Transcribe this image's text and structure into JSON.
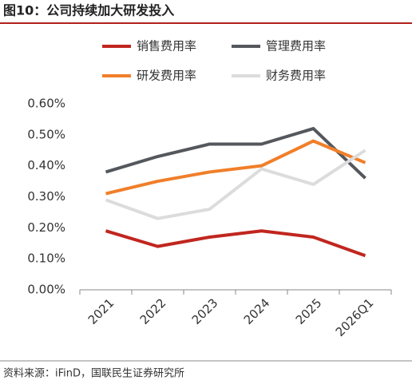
{
  "header": {
    "title": "图10：公司持续加大研发投入"
  },
  "chart_data": {
    "type": "line",
    "categories": [
      "2021",
      "2022",
      "2023",
      "2024",
      "2025",
      "2026Q1"
    ],
    "series": [
      {
        "name": "销售费用率",
        "color": "#c0261f",
        "values": [
          0.19,
          0.14,
          0.17,
          0.19,
          0.17,
          0.11
        ]
      },
      {
        "name": "管理费用率",
        "color": "#54585c",
        "values": [
          0.38,
          0.43,
          0.47,
          0.47,
          0.52,
          0.36
        ]
      },
      {
        "name": "研发费用率",
        "color": "#f07f2a",
        "values": [
          0.31,
          0.35,
          0.38,
          0.4,
          0.48,
          0.41
        ]
      },
      {
        "name": "财务费用率",
        "color": "#dcdcdc",
        "values": [
          0.29,
          0.23,
          0.26,
          0.39,
          0.34,
          0.45
        ]
      }
    ],
    "ylim": [
      0,
      0.6
    ],
    "yticks": [
      {
        "value": 0,
        "label": "0.00%"
      },
      {
        "value": 0.1,
        "label": "0.10%"
      },
      {
        "value": 0.2,
        "label": "0.20%"
      },
      {
        "value": 0.3,
        "label": "0.30%"
      },
      {
        "value": 0.4,
        "label": "0.40%"
      },
      {
        "value": 0.5,
        "label": "0.50%"
      },
      {
        "value": 0.6,
        "label": "0.60%"
      }
    ],
    "grid": false
  },
  "footer": {
    "source": "资料来源：iFinD，国联民生证券研究所"
  }
}
